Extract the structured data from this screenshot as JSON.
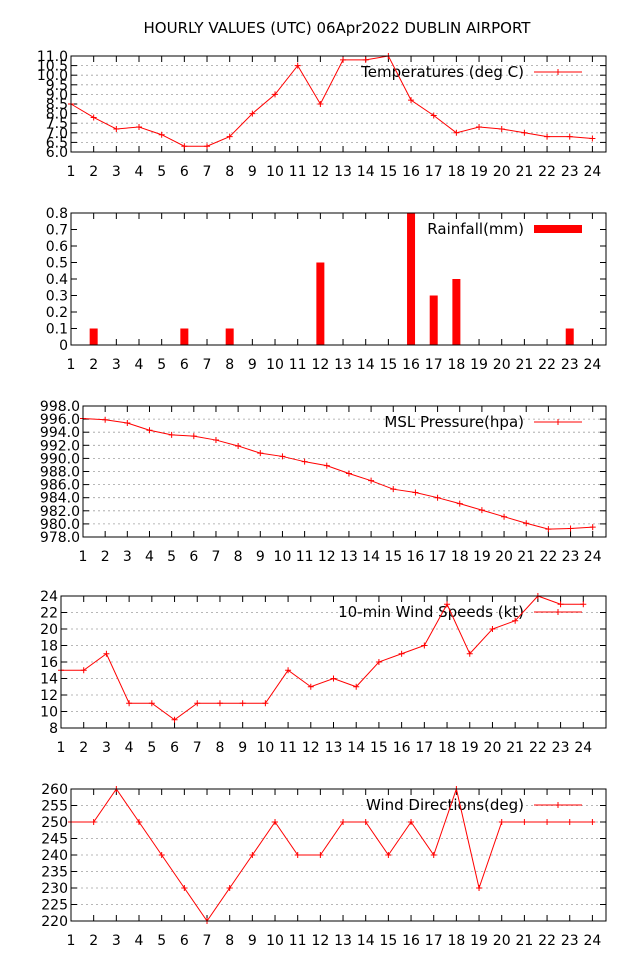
{
  "title": "HOURLY VALUES (UTC) 06Apr2022  DUBLIN AIRPORT",
  "colors": {
    "series": "#ff0000",
    "grid": "#a0a0a0",
    "axis": "#000000"
  },
  "chart_data": [
    {
      "type": "line",
      "legend": "Temperatures (deg C)",
      "legend_position": "top-right",
      "grid": true,
      "x": [
        1,
        2,
        3,
        4,
        5,
        6,
        7,
        8,
        9,
        10,
        11,
        12,
        13,
        14,
        15,
        16,
        17,
        18,
        19,
        20,
        21,
        22,
        23,
        24
      ],
      "y": [
        8.5,
        7.8,
        7.2,
        7.3,
        6.9,
        6.3,
        6.3,
        6.8,
        8.0,
        9.0,
        10.5,
        8.5,
        10.8,
        10.8,
        11.0,
        8.7,
        7.9,
        7.0,
        7.3,
        7.2,
        7.0,
        6.8,
        6.8,
        6.7
      ],
      "ylim": [
        6.0,
        11.0
      ],
      "yticks": [
        "6.0",
        "6.5",
        "7.0",
        "7.5",
        "8.0",
        "8.5",
        "9.0",
        "9.5",
        "10.0",
        "10.5",
        "11.0"
      ],
      "xticks": [
        "1",
        "2",
        "3",
        "4",
        "5",
        "6",
        "7",
        "8",
        "9",
        "10",
        "11",
        "12",
        "13",
        "14",
        "15",
        "16",
        "17",
        "18",
        "19",
        "20",
        "21",
        "22",
        "23",
        "24"
      ]
    },
    {
      "type": "bar",
      "legend": "Rainfall(mm)",
      "legend_position": "top-right",
      "grid": false,
      "x": [
        1,
        2,
        3,
        4,
        5,
        6,
        7,
        8,
        9,
        10,
        11,
        12,
        13,
        14,
        15,
        16,
        17,
        18,
        19,
        20,
        21,
        22,
        23,
        24
      ],
      "y": [
        0,
        0.1,
        0,
        0,
        0,
        0.1,
        0,
        0.1,
        0,
        0,
        0,
        0.5,
        0,
        0,
        0,
        0.8,
        0.3,
        0.4,
        0,
        0,
        0,
        0,
        0.1,
        0
      ],
      "ylim": [
        0,
        0.8
      ],
      "yticks": [
        "0",
        "0.1",
        "0.2",
        "0.3",
        "0.4",
        "0.5",
        "0.6",
        "0.7",
        "0.8"
      ],
      "xticks": [
        "1",
        "2",
        "3",
        "4",
        "5",
        "6",
        "7",
        "8",
        "9",
        "10",
        "11",
        "12",
        "13",
        "14",
        "15",
        "16",
        "17",
        "18",
        "19",
        "20",
        "21",
        "22",
        "23",
        "24"
      ]
    },
    {
      "type": "line",
      "legend": "MSL Pressure(hpa)",
      "legend_position": "top-right",
      "grid": true,
      "x": [
        1,
        2,
        3,
        4,
        5,
        6,
        7,
        8,
        9,
        10,
        11,
        12,
        13,
        14,
        15,
        16,
        17,
        18,
        19,
        20,
        21,
        22,
        23,
        24
      ],
      "y": [
        996.1,
        995.9,
        995.4,
        994.3,
        993.6,
        993.4,
        992.8,
        991.9,
        990.8,
        990.3,
        989.5,
        988.9,
        987.7,
        986.6,
        985.3,
        984.8,
        984.0,
        983.1,
        982.1,
        981.1,
        980.1,
        979.2,
        979.3,
        979.5
      ],
      "ylim": [
        978.0,
        998.0
      ],
      "yticks": [
        "978.0",
        "980.0",
        "982.0",
        "984.0",
        "986.0",
        "988.0",
        "990.0",
        "992.0",
        "994.0",
        "996.0",
        "998.0"
      ],
      "xticks": [
        "1",
        "2",
        "3",
        "4",
        "5",
        "6",
        "7",
        "8",
        "9",
        "10",
        "11",
        "12",
        "13",
        "14",
        "15",
        "16",
        "17",
        "18",
        "19",
        "20",
        "21",
        "22",
        "23",
        "24"
      ]
    },
    {
      "type": "line",
      "legend": "10-min Wind Speeds (kt)",
      "legend_position": "top-right",
      "grid": true,
      "x": [
        1,
        2,
        3,
        4,
        5,
        6,
        7,
        8,
        9,
        10,
        11,
        12,
        13,
        14,
        15,
        16,
        17,
        18,
        19,
        20,
        21,
        22,
        23,
        24
      ],
      "y": [
        15,
        15,
        17,
        11,
        11,
        9,
        11,
        11,
        11,
        11,
        15,
        13,
        14,
        13,
        16,
        17,
        18,
        23,
        17,
        20,
        21,
        24,
        23,
        23
      ],
      "ylim": [
        8,
        24
      ],
      "yticks": [
        "8",
        "10",
        "12",
        "14",
        "16",
        "18",
        "20",
        "22",
        "24"
      ],
      "xticks": [
        "1",
        "2",
        "3",
        "4",
        "5",
        "6",
        "7",
        "8",
        "9",
        "10",
        "11",
        "12",
        "13",
        "14",
        "15",
        "16",
        "17",
        "18",
        "19",
        "20",
        "21",
        "22",
        "23",
        "24"
      ]
    },
    {
      "type": "line",
      "legend": "Wind Directions(deg)",
      "legend_position": "top-right",
      "grid": true,
      "x": [
        1,
        2,
        3,
        4,
        5,
        6,
        7,
        8,
        9,
        10,
        11,
        12,
        13,
        14,
        15,
        16,
        17,
        18,
        19,
        20,
        21,
        22,
        23,
        24
      ],
      "y": [
        250,
        250,
        260,
        250,
        240,
        230,
        220,
        230,
        240,
        250,
        240,
        240,
        250,
        250,
        240,
        250,
        240,
        260,
        230,
        250,
        250,
        250,
        250,
        250
      ],
      "ylim": [
        220,
        260
      ],
      "yticks": [
        "220",
        "225",
        "230",
        "235",
        "240",
        "245",
        "250",
        "255",
        "260"
      ],
      "xticks": [
        "1",
        "2",
        "3",
        "4",
        "5",
        "6",
        "7",
        "8",
        "9",
        "10",
        "11",
        "12",
        "13",
        "14",
        "15",
        "16",
        "17",
        "18",
        "19",
        "20",
        "21",
        "22",
        "23",
        "24"
      ]
    }
  ]
}
